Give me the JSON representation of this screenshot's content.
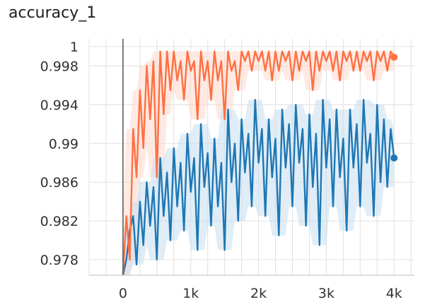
{
  "title": "accuracy_1",
  "chart_data": {
    "type": "line",
    "title": "accuracy_1",
    "xlabel": "",
    "ylabel": "",
    "x_ticks": [
      0,
      1000,
      2000,
      3000,
      4000
    ],
    "x_tick_labels": [
      "0",
      "1k",
      "2k",
      "3k",
      "4k"
    ],
    "y_ticks": [
      0.978,
      0.982,
      0.986,
      0.99,
      0.994,
      0.998,
      1.0
    ],
    "y_tick_labels": [
      "0.978",
      "0.982",
      "0.986",
      "0.99",
      "0.994",
      "0.998",
      "1"
    ],
    "xlim": [
      -500,
      4300
    ],
    "ylim": [
      0.9764,
      1.0008
    ],
    "grid": true,
    "colors": {
      "orange": "#ff7043",
      "blue": "#1f77b4",
      "orange_band": "#ffd8cc",
      "blue_band": "#c6dff0",
      "grid": "#e0e0e0"
    },
    "series": [
      {
        "color": "#ff7043",
        "x": [
          0,
          50,
          100,
          150,
          200,
          250,
          300,
          350,
          400,
          450,
          500,
          550,
          600,
          650,
          700,
          750,
          800,
          850,
          900,
          950,
          1000,
          1050,
          1100,
          1150,
          1200,
          1250,
          1300,
          1350,
          1400,
          1450,
          1500,
          1550,
          1600,
          1650,
          1700,
          1750,
          1800,
          1850,
          1900,
          1950,
          2000,
          2050,
          2100,
          2150,
          2200,
          2250,
          2300,
          2350,
          2400,
          2450,
          2500,
          2550,
          2600,
          2650,
          2700,
          2750,
          2800,
          2850,
          2900,
          2950,
          3000,
          3050,
          3100,
          3150,
          3200,
          3250,
          3300,
          3350,
          3400,
          3450,
          3500,
          3550,
          3600,
          3650,
          3700,
          3750,
          3800,
          3850,
          3900,
          3950,
          4000
        ],
        "y": [
          0.976,
          0.9825,
          0.978,
          0.9915,
          0.9865,
          0.9955,
          0.9895,
          0.998,
          0.9925,
          0.9985,
          0.9865,
          0.9995,
          0.993,
          0.9995,
          0.9955,
          0.9995,
          0.9965,
          0.9985,
          0.9945,
          0.9995,
          0.9975,
          0.9985,
          0.9925,
          0.9995,
          0.9965,
          0.9985,
          0.9945,
          0.9995,
          0.9965,
          0.9985,
          0.9925,
          0.9995,
          0.9975,
          0.9985,
          0.9955,
          0.9995,
          0.9985,
          0.9995,
          0.9975,
          0.9995,
          0.9985,
          0.9995,
          0.9975,
          0.9995,
          0.9965,
          0.9995,
          0.9975,
          0.9995,
          0.9985,
          0.9995,
          0.9965,
          0.9995,
          0.9975,
          0.9995,
          0.9985,
          0.9995,
          0.9955,
          0.9995,
          0.9975,
          0.9995,
          0.9985,
          0.9995,
          0.9975,
          0.9995,
          0.9965,
          0.9995,
          0.9985,
          0.9995,
          0.9975,
          0.9995,
          0.9975,
          0.9995,
          0.9985,
          0.9995,
          0.9965,
          0.9995,
          0.9985,
          0.9995,
          0.9975,
          0.9995,
          0.9989
        ]
      },
      {
        "color": "#1f77b4",
        "x": [
          0,
          50,
          100,
          150,
          200,
          250,
          300,
          350,
          400,
          450,
          500,
          550,
          600,
          650,
          700,
          750,
          800,
          850,
          900,
          950,
          1000,
          1050,
          1100,
          1150,
          1200,
          1250,
          1300,
          1350,
          1400,
          1450,
          1500,
          1550,
          1600,
          1650,
          1700,
          1750,
          1800,
          1850,
          1900,
          1950,
          2000,
          2050,
          2100,
          2150,
          2200,
          2250,
          2300,
          2350,
          2400,
          2450,
          2500,
          2550,
          2600,
          2650,
          2700,
          2750,
          2800,
          2850,
          2900,
          2950,
          3000,
          3050,
          3100,
          3150,
          3200,
          3250,
          3300,
          3350,
          3400,
          3450,
          3500,
          3550,
          3600,
          3650,
          3700,
          3750,
          3800,
          3850,
          3900,
          3950,
          4000
        ],
        "y": [
          0.976,
          0.978,
          0.981,
          0.9825,
          0.9775,
          0.984,
          0.9795,
          0.986,
          0.9815,
          0.9855,
          0.978,
          0.9885,
          0.9825,
          0.987,
          0.98,
          0.9895,
          0.9835,
          0.988,
          0.981,
          0.991,
          0.985,
          0.9885,
          0.979,
          0.992,
          0.9855,
          0.989,
          0.9815,
          0.9905,
          0.9835,
          0.988,
          0.979,
          0.9935,
          0.986,
          0.99,
          0.982,
          0.9925,
          0.987,
          0.991,
          0.9835,
          0.9945,
          0.988,
          0.9915,
          0.9825,
          0.9925,
          0.9865,
          0.9905,
          0.9805,
          0.9935,
          0.9875,
          0.992,
          0.9835,
          0.994,
          0.988,
          0.9915,
          0.9815,
          0.993,
          0.9855,
          0.991,
          0.9795,
          0.9945,
          0.9875,
          0.9925,
          0.9835,
          0.9935,
          0.9865,
          0.9905,
          0.981,
          0.9935,
          0.9875,
          0.992,
          0.9835,
          0.9945,
          0.988,
          0.991,
          0.9825,
          0.994,
          0.986,
          0.9925,
          0.9855,
          0.9915,
          0.9885
        ]
      }
    ]
  }
}
